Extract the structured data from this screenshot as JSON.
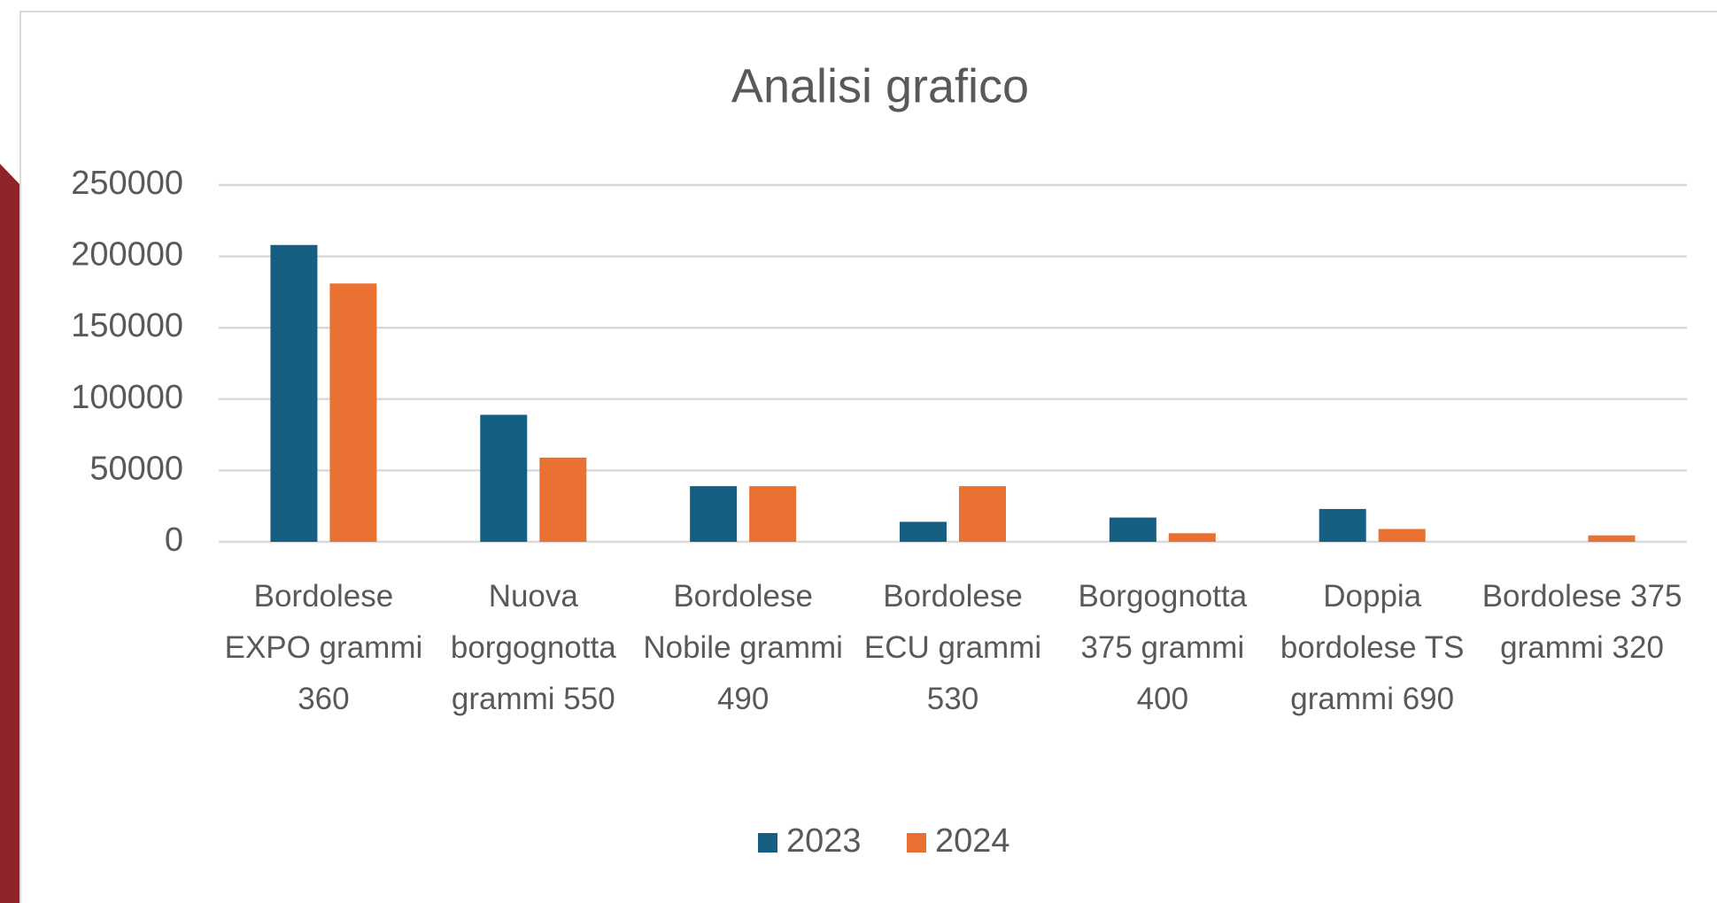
{
  "chart_data": {
    "type": "bar",
    "title": "Analisi grafico",
    "categories": [
      "Bordolese EXPO grammi 360",
      "Nuova borgognotta grammi 550",
      "Bordolese Nobile grammi 490",
      "Bordolese ECU grammi 530",
      "Borgognotta 375 grammi 400",
      "Doppia bordolese TS grammi 690",
      "Bordolese 375 grammi 320"
    ],
    "series": [
      {
        "name": "2023",
        "color": "#156082",
        "values": [
          208000,
          89000,
          39000,
          14000,
          17000,
          23000,
          0
        ]
      },
      {
        "name": "2024",
        "color": "#e97132",
        "values": [
          181000,
          59000,
          39000,
          39000,
          6000,
          9000,
          4500
        ]
      }
    ],
    "ylim": [
      0,
      250000
    ],
    "yticks": [
      0,
      50000,
      100000,
      150000,
      200000,
      250000
    ],
    "grid": true,
    "legend": "bottom"
  }
}
